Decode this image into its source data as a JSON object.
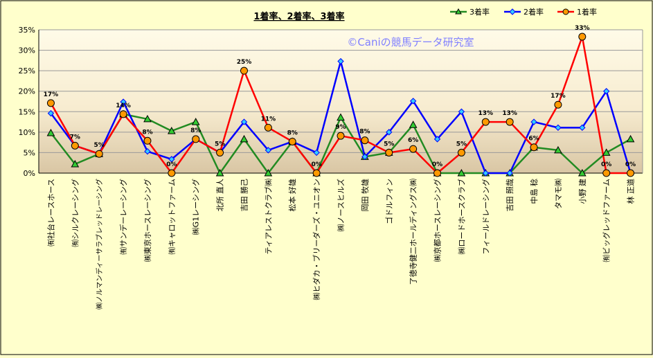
{
  "chart_data": {
    "type": "line",
    "title": "1着率、2着率、3着率",
    "watermark": "©Caniの競馬データ研究室",
    "ylim": [
      0,
      35
    ],
    "yticks": [
      "0%",
      "5%",
      "10%",
      "15%",
      "20%",
      "25%",
      "30%",
      "35%"
    ],
    "grid": true,
    "legend_position": "top-right",
    "categories": [
      "㈲社台レースホース",
      "㈲シルクレーシング",
      "㈱ノルマンディーサラブレッドレーシング",
      "㈲サンデーレーシング",
      "㈱東京ホースレーシング",
      "㈲キャロットファーム",
      "㈱G1レーシング",
      "北所 直人",
      "吉田 勝己",
      "ティアレストクラブ㈱",
      "松本 好雄",
      "㈱ヒダカ・ブリーダーズ・ユニオン",
      "㈱ノースヒルズ",
      "岡田 牧雄",
      "ゴドルフィン",
      "了徳寺健二ホールディングス㈱",
      "㈱京都ホースレーシング",
      "㈱ロードホースクラブ",
      "フィールドレーシング",
      "吉田 照哉",
      "中島 稔",
      "タマモ㈱",
      "小野 建",
      "㈲ビッグレッドファーム",
      "林 正道"
    ],
    "series": [
      {
        "name": "3着率",
        "color": "#228b22",
        "marker": "triangle",
        "marker_color": "#33cc33",
        "values": [
          9.8,
          2.2,
          4.7,
          14.4,
          13.2,
          10.3,
          12.5,
          0,
          8.3,
          0,
          7.7,
          0,
          13.6,
          4.0,
          5.0,
          11.8,
          0,
          0,
          0,
          0,
          6.3,
          5.6,
          0,
          5.0,
          8.3
        ]
      },
      {
        "name": "2着率",
        "color": "#0000ff",
        "marker": "diamond",
        "marker_color": "#33ccff",
        "values": [
          14.6,
          6.7,
          4.7,
          17.4,
          5.3,
          3.4,
          8.3,
          5.0,
          12.5,
          5.6,
          7.7,
          5.0,
          27.3,
          4.0,
          10.0,
          17.6,
          8.3,
          15.0,
          0,
          0,
          12.5,
          11.1,
          11.1,
          20.0,
          0
        ]
      },
      {
        "name": "1着率",
        "color": "#ff0000",
        "marker": "circle",
        "marker_color": "#ff9900",
        "values": [
          17.1,
          6.7,
          4.7,
          14.4,
          7.9,
          0,
          8.3,
          5.0,
          25.0,
          11.1,
          7.7,
          0,
          9.1,
          8.0,
          5.0,
          5.9,
          0,
          5.0,
          12.5,
          12.5,
          6.3,
          16.7,
          33.3,
          0,
          0
        ],
        "labels": [
          "17%",
          "7%",
          "5%",
          "14%",
          "8%",
          "0%",
          "8%",
          "5%",
          "25%",
          "11%",
          "8%",
          "0%",
          "9%",
          "8%",
          "5%",
          "6%",
          "0%",
          "5%",
          "13%",
          "13%",
          "6%",
          "17%",
          "33%",
          "0%",
          "0%"
        ]
      }
    ]
  }
}
